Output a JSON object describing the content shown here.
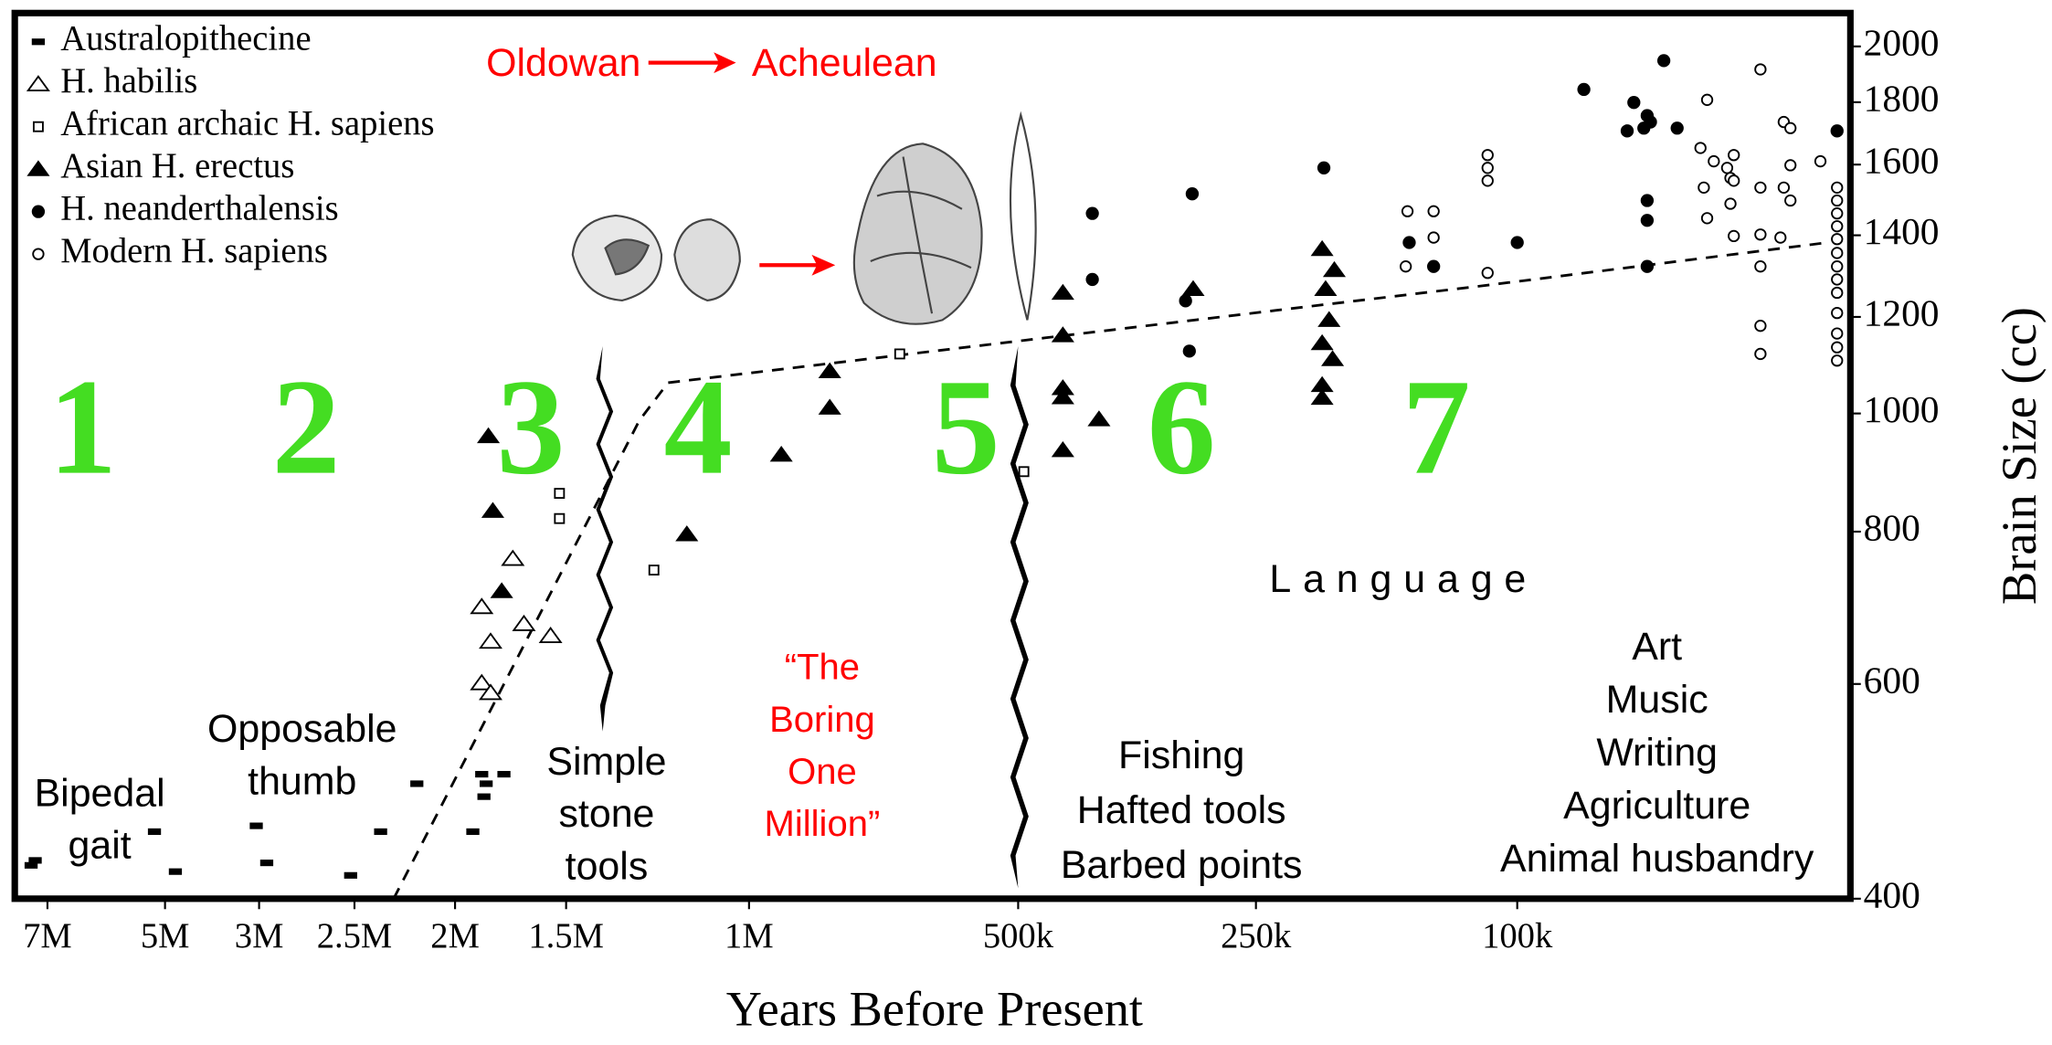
{
  "chart_data": {
    "type": "scatter",
    "x_label": "Years Before Present",
    "y_label": "Brain Size (cc)",
    "xlim": [
      7400000,
      0
    ],
    "xticks": [
      {
        "value": 7000000,
        "label": "7M"
      },
      {
        "value": 5000000,
        "label": "5M"
      },
      {
        "value": 3000000,
        "label": "3M"
      },
      {
        "value": 2500000,
        "label": "2.5M"
      },
      {
        "value": 2000000,
        "label": "2M"
      },
      {
        "value": 1500000,
        "label": "1.5M"
      },
      {
        "value": 1000000,
        "label": "1M"
      },
      {
        "value": 500000,
        "label": "500k"
      },
      {
        "value": 250000,
        "label": "250k"
      },
      {
        "value": 100000,
        "label": "100k"
      }
    ],
    "ylim": [
      400,
      2130
    ],
    "yticks": [
      400,
      600,
      800,
      1000,
      1200,
      1400,
      1600,
      1800,
      2000
    ],
    "y_log": true,
    "legend": "top-left",
    "series": [
      {
        "name": "Australopithecine",
        "color": "#000000",
        "marker": "dash",
        "x": [
          7200000,
          7150000,
          5180000,
          4780000,
          3060000,
          2960000,
          2520000,
          2370000,
          2190000,
          1920000,
          1880000,
          1860000,
          1870000,
          1780000
        ],
        "values": [
          426,
          430,
          454,
          421,
          459,
          428,
          418,
          454,
          497,
          454,
          506,
          497,
          485,
          506
        ]
      },
      {
        "name": "H. habilis",
        "color": "#000000",
        "marker": "triangle-open",
        "x": [
          1740000,
          1880000,
          1840000,
          1690000,
          1570000,
          1880000,
          1840000
        ],
        "values": [
          760,
          694,
          650,
          672,
          657,
          601,
          590
        ]
      },
      {
        "name": "African archaic H. sapiens",
        "color": "#000000",
        "marker": "square-open",
        "x": [
          1530000,
          1530000,
          1260000,
          720000,
          494000
        ],
        "values": [
          860,
          820,
          744,
          1119,
          896
        ]
      },
      {
        "name": "Asian H. erectus",
        "color": "#000000",
        "marker": "triangle",
        "x": [
          1850000,
          1830000,
          1790000,
          1170000,
          940000,
          850000,
          850000,
          453000,
          453000,
          453000,
          453000,
          453000,
          415000,
          316000,
          212000,
          205000,
          210000,
          208000,
          212000,
          206000,
          212000,
          212000
        ],
        "values": [
          958,
          832,
          715,
          796,
          925,
          1011,
          1083,
          1256,
          1159,
          1049,
          1031,
          933,
          989,
          1265,
          1364,
          1311,
          1265,
          1193,
          1142,
          1108,
          1055,
          1030
        ]
      },
      {
        "name": "H. neanderthalensis",
        "color": "#000000",
        "marker": "circle",
        "x": [
          422000,
          422000,
          317000,
          324000,
          320000,
          211000,
          162000,
          148000,
          100000,
          80000,
          65000,
          61000,
          60000,
          62000,
          67000,
          56000,
          52000,
          61000,
          61000,
          61000,
          4000
        ],
        "values": [
          1459,
          1288,
          1514,
          1237,
          1125,
          1590,
          1381,
          1320,
          1381,
          1844,
          1799,
          1755,
          1734,
          1714,
          1705,
          1947,
          1714,
          1495,
          1440,
          1320,
          1705
        ]
      },
      {
        "name": "Modern H. sapiens",
        "color": "#000000",
        "marker": "circle-open",
        "x": [
          163000,
          148000,
          164000,
          148000,
          117000,
          117000,
          117000,
          117000,
          27000,
          43000,
          45000,
          41000,
          37000,
          35000,
          36000,
          35000,
          44000,
          36000,
          43000,
          35000,
          27000,
          27000,
          27000,
          27000,
          27000,
          20000,
          18000,
          18000,
          20000,
          18000,
          21000,
          9000,
          4000,
          4000,
          4000,
          4000,
          4000,
          4000,
          4000,
          4000,
          4000,
          4000,
          4000,
          4000,
          4000
        ],
        "values": [
          1465,
          1465,
          1320,
          1394,
          1629,
          1590,
          1552,
          1304,
          1915,
          1808,
          1651,
          1610,
          1590,
          1629,
          1560,
          1552,
          1532,
          1486,
          1446,
          1398,
          1532,
          1402,
          1320,
          1180,
          1119,
          1734,
          1714,
          1598,
          1532,
          1495,
          1394,
          1610,
          1532,
          1495,
          1459,
          1424,
          1390,
          1354,
          1320,
          1288,
          1256,
          1209,
          1163,
          1133,
          1105
        ]
      }
    ],
    "period_labels": [
      "1",
      "2",
      "3",
      "4",
      "5",
      "6",
      "7"
    ],
    "period_color": "#44dd22",
    "annotations": [
      {
        "text": [
          "Bipedal",
          "gait"
        ],
        "color": "#000000"
      },
      {
        "text": [
          "Opposable",
          "thumb"
        ],
        "color": "#000000"
      },
      {
        "text": [
          "Simple",
          "stone",
          "tools"
        ],
        "color": "#000000"
      },
      {
        "text": [
          "“The",
          "Boring",
          "One",
          "Million”"
        ],
        "color": "#ff0000"
      },
      {
        "text": [
          "Fishing",
          "Hafted tools",
          "Barbed points"
        ],
        "color": "#000000"
      },
      {
        "text": [
          "Language"
        ],
        "color": "#000000"
      },
      {
        "text": [
          "Art",
          "Music",
          "Writing",
          "Agriculture",
          "Animal husbandry"
        ],
        "color": "#000000"
      },
      {
        "text": [
          "Oldowan"
        ],
        "color": "#ff0000"
      },
      {
        "text": [
          "Acheulean"
        ],
        "color": "#ff0000"
      }
    ]
  }
}
